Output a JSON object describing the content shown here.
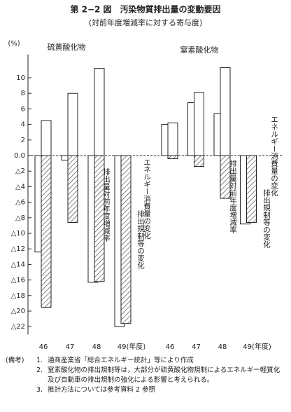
{
  "header": {
    "title": "第 2−2 図　汚染物質排出量の変動要因",
    "subtitle": "(対前年度増減率に対する寄与度)",
    "y_unit": "(%)"
  },
  "chart_data": [
    {
      "type": "bar",
      "title": "硫黄酸化物",
      "categories": [
        "46",
        "47",
        "48",
        "49(年度)"
      ],
      "ylim": [
        -23,
        13
      ],
      "yticks": [
        10,
        8,
        6,
        4,
        2,
        {
          "value": 0,
          "label": "0.0"
        },
        {
          "value": -2,
          "label": "△2"
        },
        {
          "value": -4,
          "label": "△4"
        },
        {
          "value": -6,
          "label": "△6"
        },
        {
          "value": -8,
          "label": "△8"
        },
        {
          "value": -10,
          "label": "△10"
        },
        {
          "value": -12,
          "label": "△12"
        },
        {
          "value": -14,
          "label": "△14"
        },
        {
          "value": -16,
          "label": "△16"
        },
        {
          "value": -18,
          "label": "△18"
        },
        {
          "value": -20,
          "label": "△20"
        },
        {
          "value": -22,
          "label": "△22"
        }
      ],
      "series": [
        {
          "name": "排出量対前年度増減率",
          "color": "#ffffff",
          "values": [
            -12.4,
            -0.6,
            -16.3,
            -22
          ]
        },
        {
          "name": "エネルギー消費量の変化",
          "color": "#ffffff",
          "values": [
            4.5,
            8,
            11.2,
            -0.4
          ]
        },
        {
          "name": "排出規制等の変化",
          "color": "#333333",
          "hatch": true,
          "values": [
            -19.5,
            -8.6,
            -16.2,
            -21.6
          ]
        }
      ]
    },
    {
      "type": "bar",
      "title": "窒素酸化物",
      "categories": [
        "46",
        "47",
        "48",
        "49(年度)"
      ],
      "ylim": [
        -23,
        13
      ],
      "series": [
        {
          "name": "排出量対前年度増減率",
          "color": "#ffffff",
          "values": [
            4,
            6.8,
            5.4,
            -8.8
          ]
        },
        {
          "name": "エネルギー消費量の変化",
          "color": "#ffffff",
          "values": [
            4.2,
            8.1,
            11.3,
            -0.3
          ]
        },
        {
          "name": "排出規制等の変化",
          "color": "#333333",
          "hatch": true,
          "values": [
            -0.4,
            -1.4,
            -5.5,
            -8.6
          ]
        }
      ]
    }
  ],
  "notes": {
    "label": "(備考)",
    "items": [
      {
        "number": "1.",
        "text": "通商産業省「総合エネルギー統計」等により作成"
      },
      {
        "number": "2.",
        "text": "窒素酸化物の排出規制等は，大部分が硫黄酸化物規制によるエネルギー軽質化及び自動車の排出規制の強化による影響と考えられる。"
      },
      {
        "number": "3.",
        "text": "推計方法については参考資料 2 参照"
      }
    ]
  }
}
